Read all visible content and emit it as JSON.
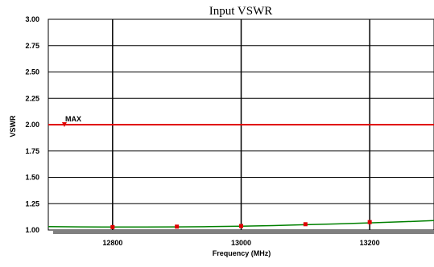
{
  "chart_data": {
    "type": "line",
    "title": "Input VSWR",
    "xlabel": "Frequency (MHz)",
    "ylabel": "VSWR",
    "xlim": [
      12700,
      13300
    ],
    "ylim": [
      1.0,
      3.0
    ],
    "x_ticks": [
      12800,
      13000,
      13200
    ],
    "y_ticks": [
      1.0,
      1.25,
      1.5,
      1.75,
      2.0,
      2.25,
      2.5,
      2.75,
      3.0
    ],
    "grid": true,
    "limit_line": {
      "label": "MAX",
      "value": 2.0,
      "color": "#e00000",
      "marker_x": 12725
    },
    "series": [
      {
        "color": "#008000",
        "x": [
          12700,
          12750,
          12800,
          12850,
          12900,
          12950,
          13000,
          13050,
          13100,
          13150,
          13200,
          13250,
          13300
        ],
        "y": [
          1.032,
          1.03,
          1.028,
          1.028,
          1.03,
          1.032,
          1.036,
          1.042,
          1.05,
          1.058,
          1.068,
          1.078,
          1.09
        ]
      }
    ],
    "markers": {
      "color": "#e00000",
      "x": [
        12800,
        12900,
        13000,
        13100,
        13200
      ],
      "y": [
        1.028,
        1.032,
        1.038,
        1.055,
        1.075
      ]
    }
  }
}
